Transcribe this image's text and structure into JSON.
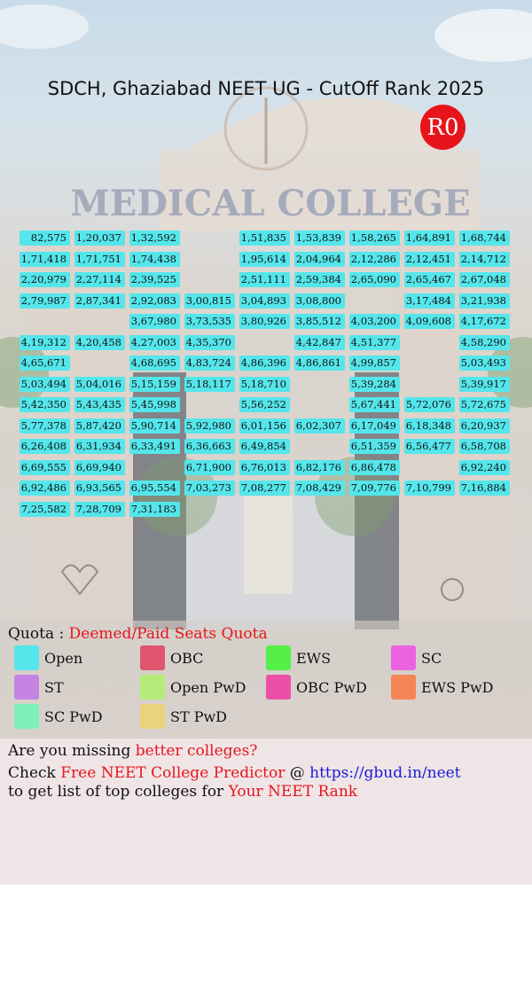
{
  "title": "SDCH, Ghaziabad NEET UG - CutOff Rank 2025",
  "round_badge": "R0",
  "grid": {
    "columns": 9,
    "rows": [
      [
        "82,575",
        "1,20,037",
        "1,32,592",
        "",
        "1,51,835",
        "1,53,839",
        "1,58,265",
        "1,64,891",
        "1,68,744"
      ],
      [
        "1,71,418",
        "1,71,751",
        "1,74,438",
        "",
        "1,95,614",
        "2,04,964",
        "2,12,286",
        "2,12,451",
        "2,14,712"
      ],
      [
        "2,20,979",
        "2,27,114",
        "2,39,525",
        "",
        "2,51,111",
        "2,59,384",
        "2,65,090",
        "2,65,467",
        "2,67,048"
      ],
      [
        "2,79,987",
        "2,87,341",
        "2,92,083",
        "3,00,815",
        "3,04,893",
        "3,08,800",
        "",
        "3,17,484",
        "3,21,938"
      ],
      [
        "",
        "",
        "3,67,980",
        "3,73,535",
        "3,80,926",
        "3,85,512",
        "4,03,200",
        "4,09,608",
        "4,17,672"
      ],
      [
        "4,19,312",
        "4,20,458",
        "4,27,003",
        "4,35,370",
        "",
        "4,42,847",
        "4,51,377",
        "",
        "4,58,290"
      ],
      [
        "4,65,671",
        "",
        "4,68,695",
        "4,83,724",
        "4,86,396",
        "4,86,861",
        "4,99,857",
        "",
        "5,03,493"
      ],
      [
        "5,03,494",
        "5,04,016",
        "5,15,159",
        "5,18,117",
        "5,18,710",
        "",
        "5,39,284",
        "",
        "5,39,917"
      ],
      [
        "5,42,350",
        "5,43,435",
        "5,45,998",
        "",
        "5,56,252",
        "",
        "5,67,441",
        "5,72,076",
        "5,72,675"
      ],
      [
        "5,77,378",
        "5,87,420",
        "5,90,714",
        "5,92,980",
        "6,01,156",
        "6,02,307",
        "6,17,049",
        "6,18,348",
        "6,20,937"
      ],
      [
        "6,26,408",
        "6,31,934",
        "6,33,491",
        "6,36,663",
        "6,49,854",
        "",
        "6,51,359",
        "6,56,477",
        "6,58,708"
      ],
      [
        "6,69,555",
        "6,69,940",
        "",
        "6,71,900",
        "6,76,013",
        "6,82,176",
        "6,86,478",
        "",
        "6,92,240"
      ],
      [
        "6,92,486",
        "6,93,565",
        "6,95,554",
        "7,03,273",
        "7,08,277",
        "7,08,429",
        "7,09,776",
        "7,10,799",
        "7,16,884"
      ],
      [
        "7,25,582",
        "7,28,709",
        "7,31,183",
        "",
        "",
        "",
        "",
        "",
        ""
      ]
    ]
  },
  "quota": {
    "label": "Quota : ",
    "value": "Deemed/Paid Seats Quota"
  },
  "legend": [
    {
      "label": "Open",
      "color": "#55e6ec"
    },
    {
      "label": "OBC",
      "color": "#e0566f"
    },
    {
      "label": "EWS",
      "color": "#55f045"
    },
    {
      "label": "SC",
      "color": "#ec62e0"
    },
    {
      "label": "ST",
      "color": "#c584e4"
    },
    {
      "label": "Open PwD",
      "color": "#b3ec78"
    },
    {
      "label": "OBC PwD",
      "color": "#ec4fa8"
    },
    {
      "label": "EWS PwD",
      "color": "#f58555"
    },
    {
      "label": "SC PwD",
      "color": "#7df0b9"
    },
    {
      "label": "ST PwD",
      "color": "#e9d47b"
    }
  ],
  "footer": {
    "line1_a": "Are you missing ",
    "line1_b": "better colleges?",
    "line2_a": "Check ",
    "line2_b": "Free NEET College Predictor",
    "line2_c": " @ ",
    "line2_d": "https://gbud.in/neet",
    "line3_a": "to get list of top colleges for ",
    "line3_b": "Your NEET Rank"
  }
}
